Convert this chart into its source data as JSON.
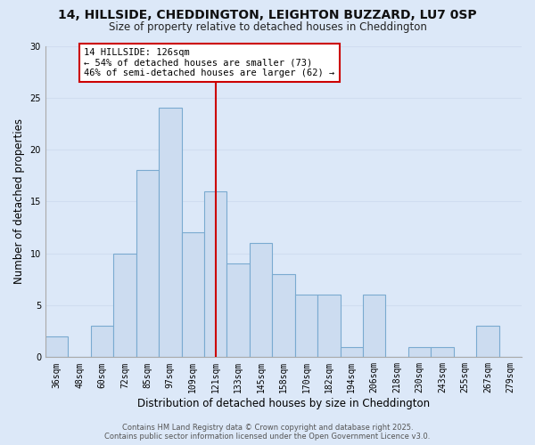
{
  "title": "14, HILLSIDE, CHEDDINGTON, LEIGHTON BUZZARD, LU7 0SP",
  "subtitle": "Size of property relative to detached houses in Cheddington",
  "xlabel": "Distribution of detached houses by size in Cheddington",
  "ylabel": "Number of detached properties",
  "background_color": "#dce8f8",
  "bar_color": "#ccdcf0",
  "bar_edge_color": "#7aaad0",
  "categories": [
    "36sqm",
    "48sqm",
    "60sqm",
    "72sqm",
    "85sqm",
    "97sqm",
    "109sqm",
    "121sqm",
    "133sqm",
    "145sqm",
    "158sqm",
    "170sqm",
    "182sqm",
    "194sqm",
    "206sqm",
    "218sqm",
    "230sqm",
    "243sqm",
    "255sqm",
    "267sqm",
    "279sqm"
  ],
  "values": [
    2,
    0,
    3,
    10,
    18,
    24,
    12,
    16,
    9,
    11,
    8,
    6,
    6,
    1,
    6,
    0,
    1,
    1,
    0,
    3,
    0
  ],
  "ylim": [
    0,
    30
  ],
  "yticks": [
    0,
    5,
    10,
    15,
    20,
    25,
    30
  ],
  "vline_x": 7.0,
  "vline_label": "14 HILLSIDE: 126sqm",
  "annotation_line1": "← 54% of detached houses are smaller (73)",
  "annotation_line2": "46% of semi-detached houses are larger (62) →",
  "annotation_box_color": "#ffffff",
  "annotation_box_edge": "#cc0000",
  "vline_color": "#cc0000",
  "footer_line1": "Contains HM Land Registry data © Crown copyright and database right 2025.",
  "footer_line2": "Contains public sector information licensed under the Open Government Licence v3.0.",
  "grid_color": "#d0ddf0",
  "title_fontsize": 10,
  "subtitle_fontsize": 8.5,
  "axis_label_fontsize": 8.5,
  "tick_fontsize": 7,
  "footer_fontsize": 6,
  "annotation_fontsize": 7.5
}
